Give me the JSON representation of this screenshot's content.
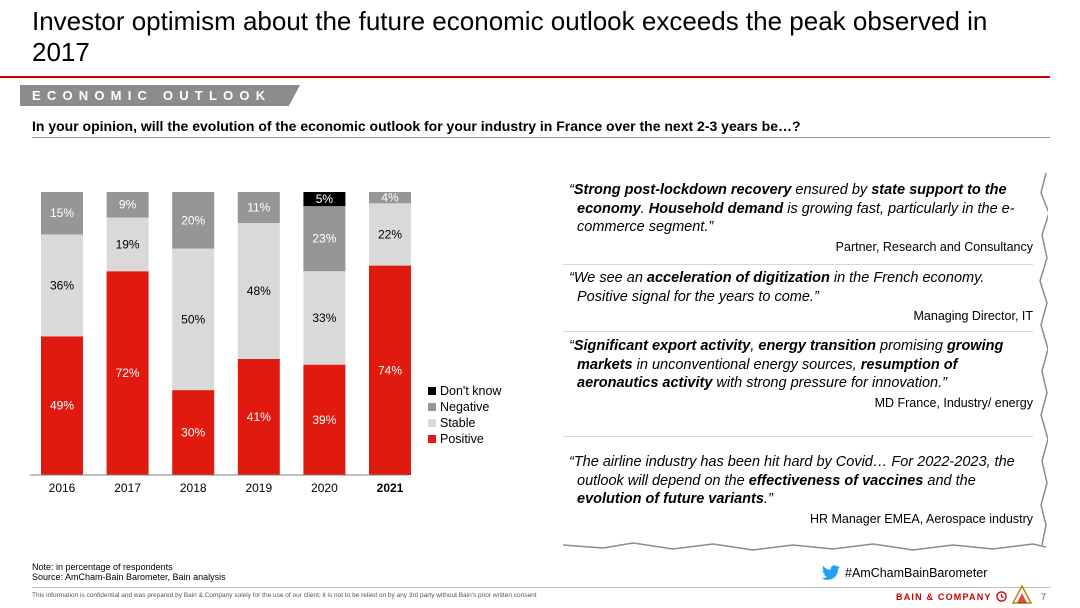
{
  "title": "Investor optimism about the future economic outlook exceeds the peak observed in 2017",
  "section": "ECONOMIC OUTLOOK",
  "question": "In your opinion, will the evolution of the economic outlook for your industry in France over the next 2-3 years be…?",
  "colors": {
    "accent": "#cc0000",
    "positive": "#e01a0e",
    "stable": "#d9d9d9",
    "negative": "#969696",
    "dont_know": "#000000"
  },
  "chart_data": {
    "type": "bar",
    "stacked": true,
    "categories": [
      "2016",
      "2017",
      "2018",
      "2019",
      "2020",
      "2021"
    ],
    "highlighted_category": "2021",
    "series": [
      {
        "name": "Positive",
        "values": [
          49,
          72,
          30,
          41,
          39,
          74
        ],
        "labels": [
          "49%",
          "72%",
          "30%",
          "41%",
          "39%",
          "74%"
        ]
      },
      {
        "name": "Stable",
        "values": [
          36,
          19,
          50,
          48,
          33,
          22
        ],
        "labels": [
          "36%",
          "19%",
          "50%",
          "48%",
          "33%",
          "22%"
        ]
      },
      {
        "name": "Negative",
        "values": [
          15,
          9,
          20,
          11,
          23,
          4
        ],
        "labels": [
          "15%",
          "9%",
          "20%",
          "11%",
          "23%",
          "4%"
        ]
      },
      {
        "name": "Don't know",
        "values": [
          0,
          0,
          0,
          0,
          5,
          0
        ],
        "labels": [
          "",
          "",
          "",
          "",
          "5%",
          ""
        ]
      }
    ],
    "ylim": [
      0,
      100
    ],
    "legend": [
      "Don't know",
      "Negative",
      "Stable",
      "Positive"
    ],
    "legend_position": "right",
    "grid": false
  },
  "quotes": [
    {
      "html": "“<b>Strong post-lockdown recovery</b> ensured by <b>state support to the economy</b>. <b>Household demand</b> is growing fast, particularly in the e-commerce segment.”",
      "author": "Partner, Research and Consultancy"
    },
    {
      "html": "“We see an <b>acceleration of digitization</b> in the French economy. Positive signal for the years to come.”",
      "author": "Managing Director, IT"
    },
    {
      "html": "“<b>Significant export activity</b>, <b>energy transition</b> promising <b>growing markets</b> in unconventional energy sources, <b>resumption of aeronautics activity</b> with strong pressure for innovation.”",
      "author": "MD France, Industry/ energy"
    },
    {
      "html": "“The airline industry has been hit hard by Covid… For 2022-2023, the outlook will depend on the <b>effectiveness of vaccines</b> and the <b>evolution of future variants</b>.”",
      "author": "HR Manager EMEA, Aerospace industry"
    }
  ],
  "note": "Note: in percentage of respondents",
  "source": "Source: AmCham-Bain Barometer, Bain analysis",
  "hashtag": "#AmChamBainBarometer",
  "disclaimer": "This information is confidential and was prepared by Bain & Company solely for the use of our client; it is not to be relied on by any 3rd party without Bain's prior written consent",
  "brand": "BAIN & COMPANY",
  "page_number": "7"
}
